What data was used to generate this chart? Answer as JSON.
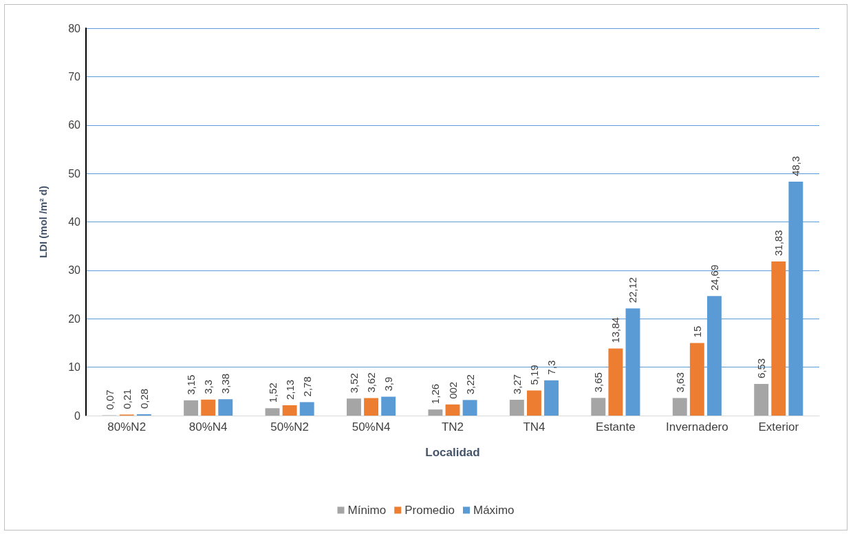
{
  "chart_data": {
    "type": "bar",
    "xlabel": "Localidad",
    "ylabel": "LDI (mol /m² d)",
    "categories": [
      "80%N2",
      "80%N4",
      "50%N2",
      "50%N4",
      "TN2",
      "TN4",
      "Estante",
      "Invernadero",
      "Exterior"
    ],
    "series": [
      {
        "name": "Mínimo",
        "color": "#a5a5a5",
        "values": [
          0.07,
          3.15,
          1.52,
          3.52,
          1.26,
          3.27,
          3.65,
          3.63,
          6.53
        ],
        "value_labels": [
          "0,07",
          "3,15",
          "1,52",
          "3,52",
          "1,26",
          "3,27",
          "3,65",
          "3,63",
          "6,53"
        ]
      },
      {
        "name": "Promedio",
        "color": "#ed7d31",
        "values": [
          0.21,
          3.3,
          2.13,
          3.62,
          2.3,
          5.19,
          13.84,
          15,
          31.83
        ],
        "value_labels": [
          "0,21",
          "3,3",
          "2,13",
          "3,62",
          "002",
          "5,19",
          "13,84",
          "15",
          "31,83"
        ]
      },
      {
        "name": "Máximo",
        "color": "#5b9bd5",
        "values": [
          0.28,
          3.38,
          2.78,
          3.9,
          3.22,
          7.3,
          22.12,
          24.69,
          48.3
        ],
        "value_labels": [
          "0,28",
          "3,38",
          "2,78",
          "3,9",
          "3,22",
          "7,3",
          "22,12",
          "24,69",
          "48,3"
        ]
      }
    ],
    "ylim": [
      0,
      80
    ],
    "yticks": [
      0,
      10,
      20,
      30,
      40,
      50,
      60,
      70,
      80
    ],
    "grid": "y",
    "legend": "bottom"
  }
}
